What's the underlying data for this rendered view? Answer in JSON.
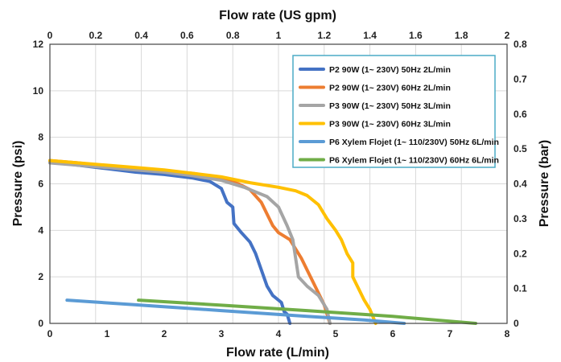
{
  "chart_data": {
    "type": "line",
    "xlabel": "Flow rate (L/min)",
    "x2label": "Flow rate (US gpm)",
    "ylabel": "Pressure (psi)",
    "y2label": "Pressure (bar)",
    "xlim": [
      0,
      8
    ],
    "ylim": [
      0,
      12
    ],
    "x2lim": [
      0,
      2
    ],
    "y2lim": [
      0,
      0.8
    ],
    "xticks": [
      "0",
      "1",
      "2",
      "3",
      "4",
      "5",
      "6",
      "7",
      "8"
    ],
    "yticks": [
      "0",
      "2",
      "4",
      "6",
      "8",
      "10",
      "12"
    ],
    "x2ticks": [
      "0",
      "0.2",
      "0.4",
      "0.6",
      "0.8",
      "1",
      "1.2",
      "1.4",
      "1.6",
      "1.8",
      "2"
    ],
    "y2ticks": [
      "0",
      "0.1",
      "0.2",
      "0.3",
      "0.4",
      "0.5",
      "0.6",
      "0.7",
      "0.8"
    ],
    "grid": true,
    "legend_position": "top-right",
    "series": [
      {
        "name": "P2 90W (1~ 230V) 50Hz 2L/min",
        "color": "#4472c4",
        "points": [
          [
            0,
            6.95
          ],
          [
            0.5,
            6.8
          ],
          [
            1,
            6.65
          ],
          [
            1.5,
            6.5
          ],
          [
            2,
            6.4
          ],
          [
            2.5,
            6.25
          ],
          [
            2.8,
            6.1
          ],
          [
            3.0,
            5.8
          ],
          [
            3.1,
            5.2
          ],
          [
            3.2,
            5.0
          ],
          [
            3.22,
            4.3
          ],
          [
            3.35,
            3.9
          ],
          [
            3.5,
            3.5
          ],
          [
            3.6,
            3.0
          ],
          [
            3.7,
            2.3
          ],
          [
            3.8,
            1.6
          ],
          [
            3.9,
            1.2
          ],
          [
            4.05,
            0.9
          ],
          [
            4.1,
            0.5
          ],
          [
            4.15,
            0.4
          ],
          [
            4.2,
            0
          ]
        ]
      },
      {
        "name": "P2 90W (1~ 230V) 60Hz 2L/min",
        "color": "#ed7d31",
        "points": [
          [
            0,
            7.0
          ],
          [
            0.5,
            6.9
          ],
          [
            1,
            6.75
          ],
          [
            1.5,
            6.65
          ],
          [
            2,
            6.55
          ],
          [
            2.5,
            6.45
          ],
          [
            3.0,
            6.25
          ],
          [
            3.3,
            6.0
          ],
          [
            3.5,
            5.75
          ],
          [
            3.7,
            5.2
          ],
          [
            3.8,
            4.7
          ],
          [
            3.9,
            4.2
          ],
          [
            4.0,
            3.9
          ],
          [
            4.2,
            3.6
          ],
          [
            4.3,
            3.2
          ],
          [
            4.4,
            2.8
          ],
          [
            4.5,
            2.3
          ],
          [
            4.6,
            1.8
          ],
          [
            4.7,
            1.3
          ],
          [
            4.8,
            0.8
          ],
          [
            4.85,
            0.4
          ],
          [
            4.9,
            0
          ]
        ]
      },
      {
        "name": "P3 90W (1~ 230V) 50Hz 3L/min",
        "color": "#a5a5a5",
        "points": [
          [
            0,
            6.9
          ],
          [
            0.5,
            6.8
          ],
          [
            1,
            6.7
          ],
          [
            1.5,
            6.6
          ],
          [
            2,
            6.5
          ],
          [
            2.5,
            6.35
          ],
          [
            3.0,
            6.15
          ],
          [
            3.4,
            5.85
          ],
          [
            3.8,
            5.45
          ],
          [
            4.0,
            5.0
          ],
          [
            4.15,
            4.2
          ],
          [
            4.25,
            3.6
          ],
          [
            4.3,
            2.8
          ],
          [
            4.35,
            2.0
          ],
          [
            4.5,
            1.6
          ],
          [
            4.7,
            1.2
          ],
          [
            4.85,
            0.6
          ],
          [
            4.9,
            0
          ]
        ]
      },
      {
        "name": "P3 90W (1~ 230V) 60Hz 3L/min",
        "color": "#ffc000",
        "points": [
          [
            0,
            7.0
          ],
          [
            0.5,
            6.9
          ],
          [
            1,
            6.8
          ],
          [
            1.5,
            6.7
          ],
          [
            2,
            6.6
          ],
          [
            2.5,
            6.45
          ],
          [
            3.0,
            6.3
          ],
          [
            3.5,
            6.05
          ],
          [
            4.0,
            5.85
          ],
          [
            4.3,
            5.7
          ],
          [
            4.5,
            5.5
          ],
          [
            4.7,
            5.1
          ],
          [
            4.85,
            4.5
          ],
          [
            5.0,
            4.0
          ],
          [
            5.1,
            3.6
          ],
          [
            5.2,
            3.0
          ],
          [
            5.3,
            2.6
          ],
          [
            5.3,
            2.0
          ],
          [
            5.4,
            1.5
          ],
          [
            5.5,
            1.0
          ],
          [
            5.6,
            0.6
          ],
          [
            5.65,
            0.3
          ],
          [
            5.7,
            0
          ]
        ]
      },
      {
        "name": "P6 Xylem Flojet (1~ 110/230V) 50Hz 6L/min",
        "color": "#5b9bd5",
        "points": [
          [
            0.3,
            1.0
          ],
          [
            1.5,
            0.8
          ],
          [
            3.0,
            0.55
          ],
          [
            4.5,
            0.3
          ],
          [
            5.5,
            0.15
          ],
          [
            6.2,
            0
          ]
        ]
      },
      {
        "name": "P6 Xylem Flojet (1~ 110/230V) 60Hz 6L/min",
        "color": "#70ad47",
        "points": [
          [
            1.55,
            1.0
          ],
          [
            3.0,
            0.78
          ],
          [
            4.5,
            0.55
          ],
          [
            6.0,
            0.3
          ],
          [
            7.45,
            0
          ]
        ]
      }
    ]
  }
}
